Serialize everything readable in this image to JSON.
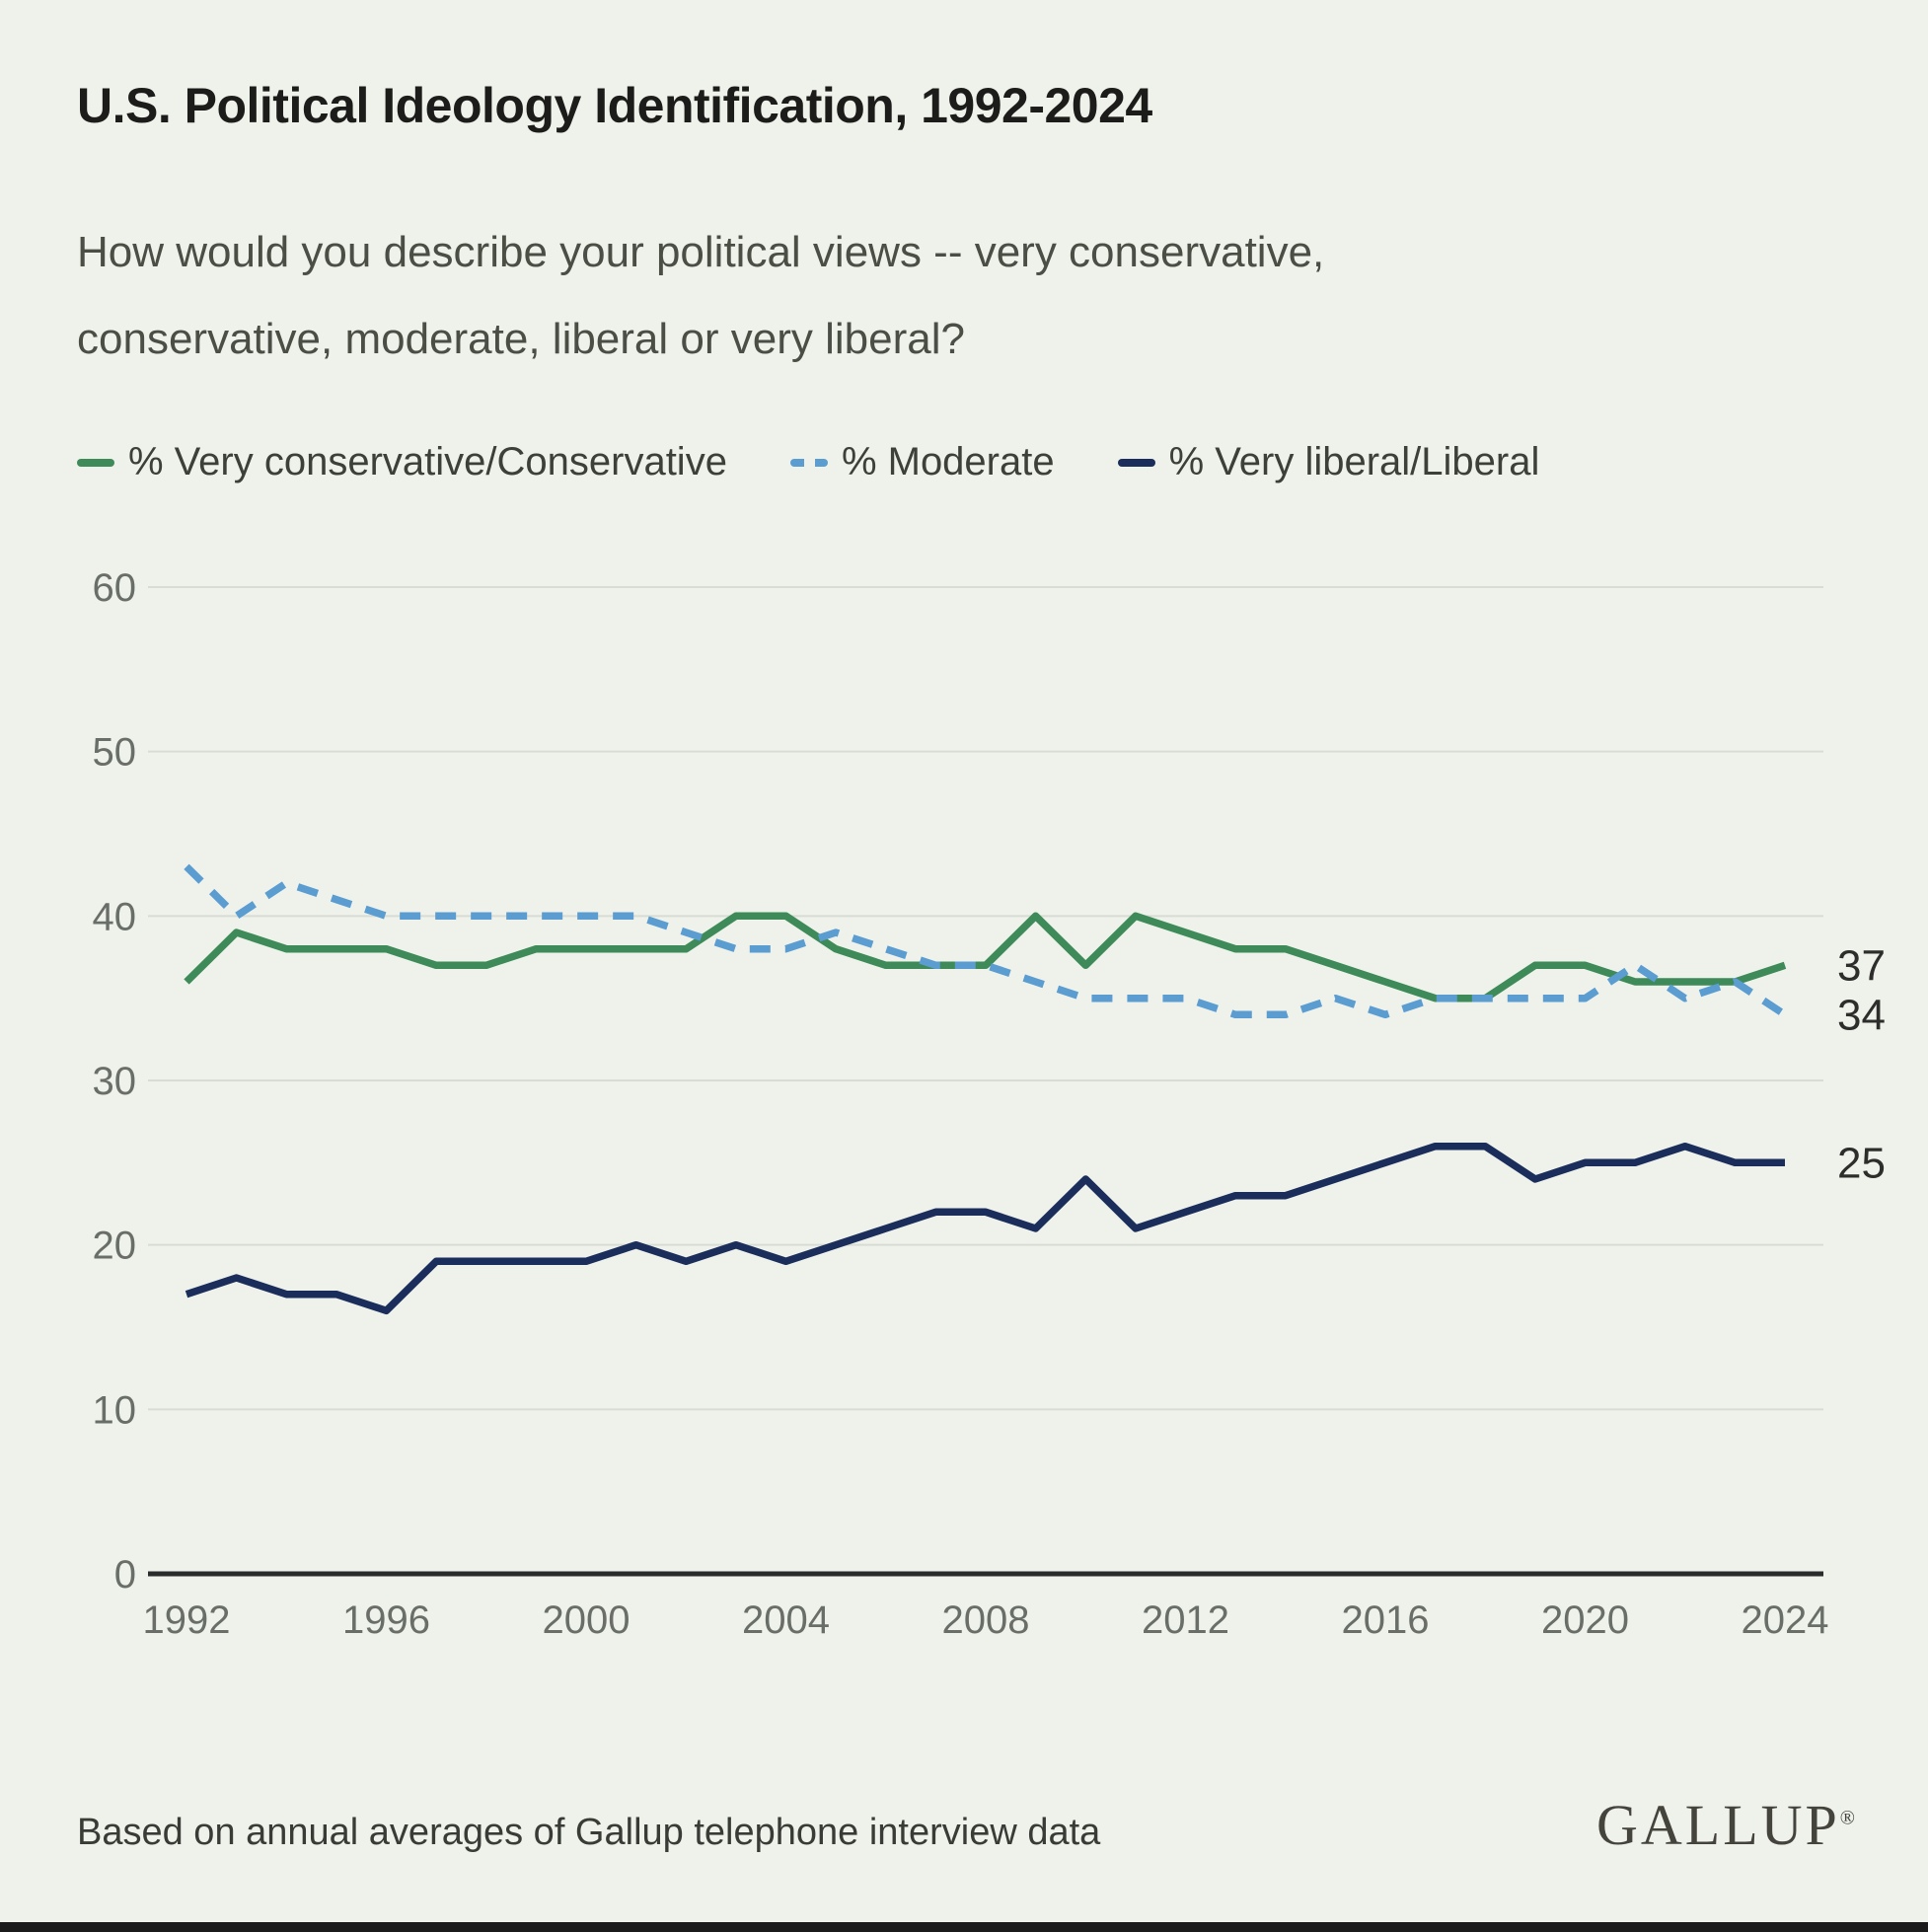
{
  "header": {
    "title": "U.S. Political Ideology Identification, 1992-2024",
    "subtitle_line1": "How would you describe your political views -- very conservative,",
    "subtitle_line2": "conservative, moderate, liberal or very liberal?"
  },
  "legend": [
    {
      "label": "% Very conservative/Conservative",
      "color": "#3E8A58",
      "style": "solid"
    },
    {
      "label": "% Moderate",
      "color": "#5B9CD1",
      "style": "dashed"
    },
    {
      "label": "% Very liberal/Liberal",
      "color": "#1B2D5A",
      "style": "solid"
    }
  ],
  "footer": {
    "note": "Based on annual averages of Gallup telephone interview data",
    "logo_text": "GALLUP",
    "logo_mark": "®"
  },
  "colors": {
    "background": "#EEF2EB",
    "gridline": "#D7DCD4",
    "axis_line": "#2B2B2B",
    "tick_text": "#696E68",
    "end_label_text": "#2D2D2B"
  },
  "chart_data": {
    "type": "line",
    "title": "U.S. Political Ideology Identification, 1992-2024",
    "xlabel": "",
    "ylabel": "",
    "xlim": [
      1992,
      2024
    ],
    "ylim": [
      0,
      60
    ],
    "grid": "horizontal",
    "legend_position": "top",
    "x": [
      1992,
      1993,
      1994,
      1995,
      1996,
      1997,
      1998,
      1999,
      2000,
      2001,
      2002,
      2003,
      2004,
      2005,
      2006,
      2007,
      2008,
      2009,
      2010,
      2011,
      2012,
      2013,
      2014,
      2015,
      2016,
      2017,
      2018,
      2019,
      2020,
      2021,
      2022,
      2023,
      2024
    ],
    "x_ticks": [
      1992,
      1996,
      2000,
      2004,
      2008,
      2012,
      2016,
      2020,
      2024
    ],
    "y_ticks": [
      60,
      50,
      40,
      30,
      20,
      10,
      0
    ],
    "series": [
      {
        "name": "% Very conservative/Conservative",
        "color": "#3E8A58",
        "style": "solid",
        "values": [
          36,
          39,
          38,
          38,
          38,
          37,
          37,
          38,
          38,
          38,
          38,
          40,
          40,
          38,
          37,
          37,
          37,
          40,
          37,
          40,
          39,
          38,
          38,
          37,
          36,
          35,
          35,
          37,
          37,
          36,
          36,
          36,
          37
        ],
        "end_label": "37"
      },
      {
        "name": "% Moderate",
        "color": "#5B9CD1",
        "style": "dashed",
        "values": [
          43,
          40,
          42,
          41,
          40,
          40,
          40,
          40,
          40,
          40,
          39,
          38,
          38,
          39,
          38,
          37,
          37,
          36,
          35,
          35,
          35,
          34,
          34,
          35,
          34,
          35,
          35,
          35,
          35,
          37,
          35,
          36,
          34
        ],
        "end_label": "34"
      },
      {
        "name": "% Very liberal/Liberal",
        "color": "#1B2D5A",
        "style": "solid",
        "values": [
          17,
          18,
          17,
          17,
          16,
          19,
          19,
          19,
          19,
          20,
          19,
          20,
          19,
          20,
          21,
          22,
          22,
          21,
          24,
          21,
          22,
          23,
          23,
          24,
          25,
          26,
          26,
          24,
          25,
          25,
          26,
          25,
          25
        ],
        "end_label": "25"
      }
    ]
  }
}
